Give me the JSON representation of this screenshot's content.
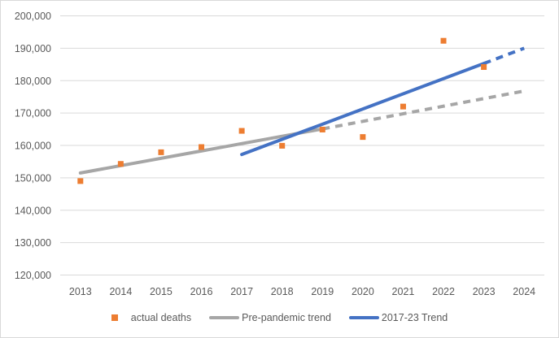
{
  "chart": {
    "background_color": "#FFFFFF",
    "border_color": "#D9D9D9",
    "gridline_color": "#D9D9D9",
    "axis_text_color": "#595959"
  },
  "chart_data": {
    "type": "scatter",
    "title": "",
    "xlabel": "",
    "ylabel": "",
    "grid": true,
    "legend_position": "bottom",
    "ylim": [
      120000,
      200000
    ],
    "x_ticks": [
      2013,
      2014,
      2015,
      2016,
      2017,
      2018,
      2019,
      2020,
      2021,
      2022,
      2023,
      2024
    ],
    "x_tick_labels": [
      "2013",
      "2014",
      "2015",
      "2016",
      "2017",
      "2018",
      "2019",
      "2020",
      "2021",
      "2022",
      "2023",
      "2024"
    ],
    "y_ticks": [
      {
        "value": 120000,
        "label": "120,000"
      },
      {
        "value": 130000,
        "label": "130,000"
      },
      {
        "value": 140000,
        "label": "140,000"
      },
      {
        "value": 150000,
        "label": "150,000"
      },
      {
        "value": 160000,
        "label": "160,000"
      },
      {
        "value": 170000,
        "label": "170,000"
      },
      {
        "value": 180000,
        "label": "180,000"
      },
      {
        "value": 190000,
        "label": "190,000"
      },
      {
        "value": 200000,
        "label": "200,000"
      }
    ],
    "series": [
      {
        "name": "actual deaths",
        "type": "scatter",
        "marker": "square",
        "color": "#ED7D31",
        "x": [
          2013,
          2014,
          2015,
          2016,
          2017,
          2018,
          2019,
          2020,
          2021,
          2022,
          2023
        ],
        "values": [
          149000,
          154300,
          157900,
          159500,
          164500,
          159900,
          164900,
          162600,
          172000,
          192300,
          184200
        ]
      },
      {
        "name": "Pre-pandemic trend",
        "type": "line",
        "color": "#A6A6A6",
        "solid": {
          "x": [
            2013,
            2019
          ],
          "values": [
            151500,
            165100
          ]
        },
        "dashed": {
          "x": [
            2019,
            2024
          ],
          "values": [
            165100,
            176800
          ]
        }
      },
      {
        "name": "2017-23 Trend",
        "type": "line",
        "color": "#4472C4",
        "solid": {
          "x": [
            2017,
            2023
          ],
          "values": [
            157200,
            185300
          ]
        },
        "dashed": {
          "x": [
            2023,
            2024
          ],
          "values": [
            185300,
            190000
          ]
        }
      }
    ]
  }
}
